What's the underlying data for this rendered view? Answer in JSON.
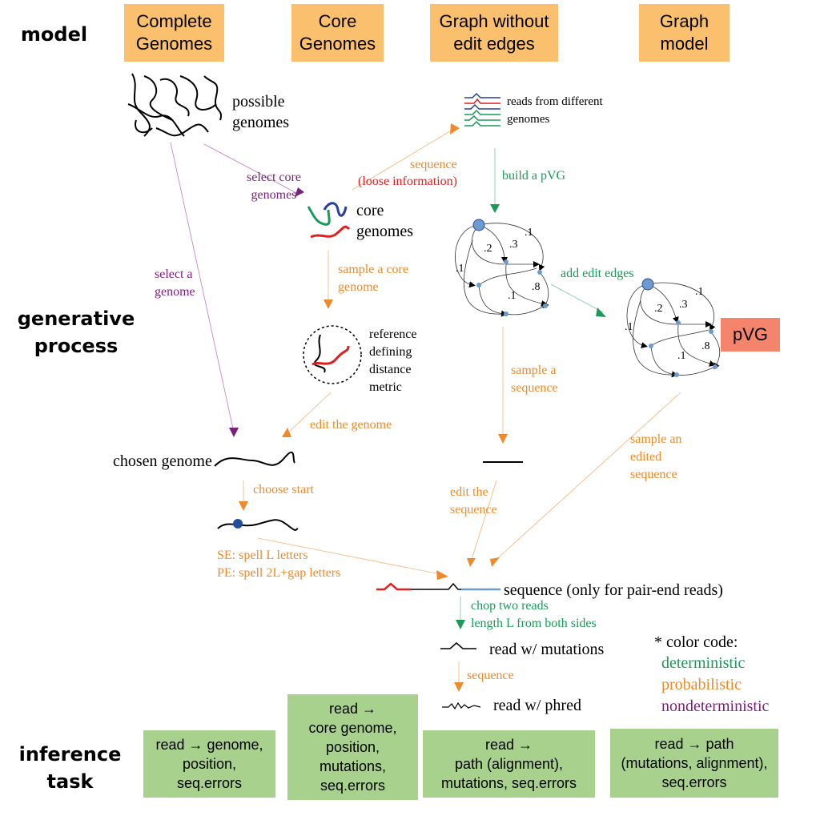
{
  "row_labels": {
    "model": "model",
    "generative_process": "generative\nprocess",
    "inference_task": "inference\ntask"
  },
  "headers": {
    "complete_genomes": "Complete\nGenomes",
    "core_genomes": "Core\nGenomes",
    "graph_without_edit_edges": "Graph without\nedit edges",
    "graph_model": "Graph\nmodel"
  },
  "labels": {
    "possible_genomes": "possible\ngenomes",
    "select_core_genomes": "select core\ngenomes",
    "select_a_genome": "select a\ngenome",
    "core_genomes": "core\ngenomes",
    "sample_core_genome": "sample a core\ngenome",
    "reference_metric": "reference\ndefining\ndistance\nmetric",
    "edit_the_genome": "edit the genome",
    "chosen_genome": "chosen genome",
    "choose_start": "choose start",
    "spell_letters": "SE: spell L letters\nPE: spell 2L+gap letters",
    "reads_different": "reads from different\ngenomes",
    "sequence_label": "sequence",
    "loose_information": "(loose information)",
    "build_pvg": "build a pVG",
    "add_edit_edges": "add edit edges",
    "sample_a_sequence": "sample a\nsequence",
    "edit_the_sequence": "edit the\nsequence",
    "sample_edited_sequence": "sample an\nedited\nsequence",
    "pvg_box": "pVG",
    "sequence_pair_end": "sequence (only for pair-end reads)",
    "chop_two_reads": "chop two reads\nlength L from both sides",
    "read_mutations": "read w/ mutations",
    "sequence_small": "sequence",
    "read_phred": "read w/ phred",
    "color_code_title": "* color code:",
    "deterministic": "deterministic",
    "probabilistic": "probabilistic",
    "nondeterministic": "nondeterministic"
  },
  "graph1_weights": {
    "w1": ".1",
    "w2": ".2",
    "w3": ".3",
    "w4": ".1",
    "w5": ".1",
    "w6": ".8"
  },
  "graph2_weights": {
    "w1": ".1",
    "w2": ".2",
    "w3": ".3",
    "w4": ".1",
    "w5": ".1",
    "w6": ".8"
  },
  "tasks": {
    "t1": "read → genome,\nposition,\nseq.errors",
    "t2": "read →\ncore genome,\nposition,\nmutations,\nseq.errors",
    "t3": "read →\npath (alignment),\nmutations, seq.errors",
    "t4": "read → path\n(mutations, alignment),\nseq.errors"
  },
  "colors": {
    "header": "#fbc06d",
    "task": "#a9d18e",
    "pvg": "#f4846b",
    "orange": "#ef8a2a",
    "purple": "#7a1f7a",
    "green": "#1a9a58"
  }
}
